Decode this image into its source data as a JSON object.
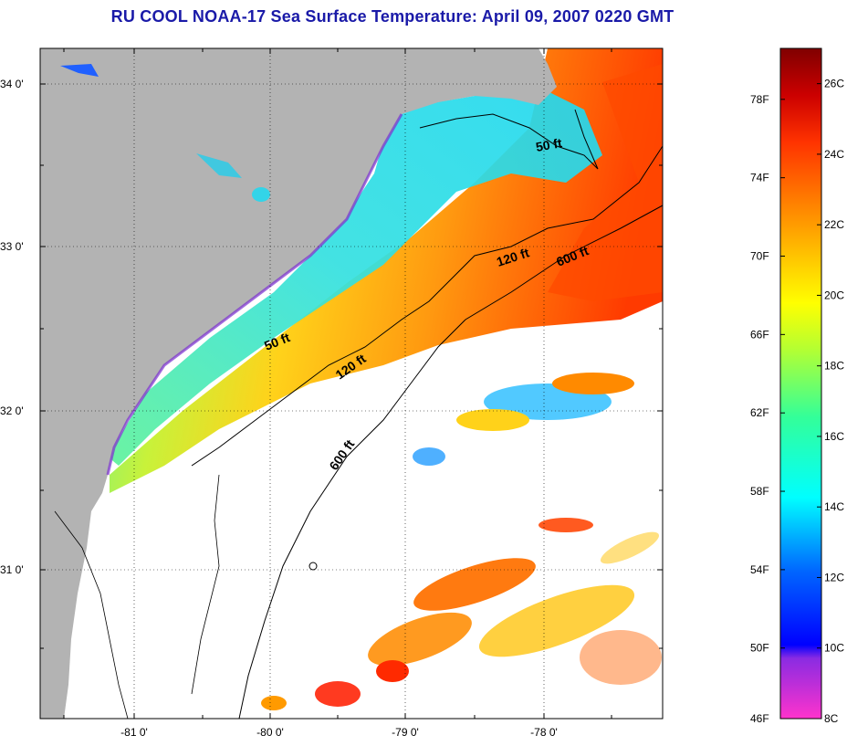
{
  "title": "RU COOL  NOAA-17  Sea Surface Temperature:  April 09, 2007 0220 GMT",
  "map": {
    "lat_labels": [
      "34 0'",
      "33 0'",
      "32 0'",
      "31 0'"
    ],
    "lon_labels": [
      "-81 0'",
      "-80 0'",
      "-79 0'",
      "-78 0'"
    ],
    "contour_labels": [
      {
        "text": "50 ft",
        "key": "50ft-north"
      },
      {
        "text": "120 ft",
        "key": "120ft-north"
      },
      {
        "text": "600 ft",
        "key": "600ft-north"
      },
      {
        "text": "50 ft",
        "key": "50ft-south"
      },
      {
        "text": "120 ft",
        "key": "120ft-south"
      },
      {
        "text": "600 ft",
        "key": "600ft-south"
      }
    ],
    "colors": {
      "land": "#b3b3b3",
      "cloud": "#ffffff",
      "contour": "#000000"
    }
  },
  "colorbar": {
    "fahrenheit_labels": [
      "78F",
      "74F",
      "70F",
      "66F",
      "62F",
      "58F",
      "54F",
      "50F",
      "46F"
    ],
    "celsius_labels": [
      "26C",
      "24C",
      "22C",
      "20C",
      "18C",
      "16C",
      "14C",
      "12C",
      "10C",
      "8C"
    ],
    "range_c": [
      8,
      27
    ],
    "gradient_colors": [
      "#ff33cc",
      "#8a2be2",
      "#0000ff",
      "#0066ff",
      "#00ffff",
      "#33ff99",
      "#b3ff33",
      "#ffff00",
      "#ff9900",
      "#ff3300",
      "#cc0000",
      "#800000"
    ]
  }
}
